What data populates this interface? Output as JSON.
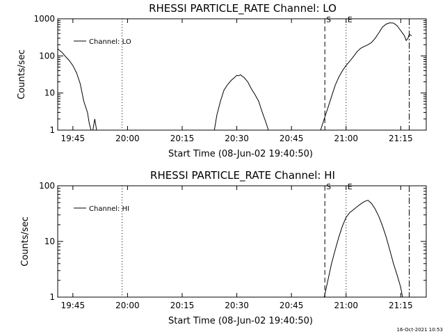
{
  "footer": {
    "timestamp": "16-Oct-2021 10:53"
  },
  "chart_data": [
    {
      "type": "line",
      "title": "RHESSI PARTICLE_RATE Channel: LO",
      "xlabel": "Start Time (08-Jun-02 19:40:50)",
      "ylabel": "Counts/sec",
      "y_scale": "log",
      "ylim": [
        1,
        1000
      ],
      "xlim": [
        "19:40:50",
        "21:22:00"
      ],
      "x_ticks": [
        "19:45",
        "20:00",
        "20:15",
        "20:30",
        "20:45",
        "21:00",
        "21:15"
      ],
      "y_ticks": [
        "1",
        "10",
        "100",
        "1000"
      ],
      "legend": {
        "placement": "top-left",
        "entries": [
          "Channel: LO"
        ]
      },
      "markers": [
        {
          "label": "",
          "time": "19:58:30",
          "style": "dotted"
        },
        {
          "label": "S",
          "time": "20:54:10",
          "style": "dashed"
        },
        {
          "label": "E",
          "time": "21:00:00",
          "style": "dotted"
        },
        {
          "label": "",
          "time": "21:17:20",
          "style": "dash-dot"
        }
      ],
      "series": [
        {
          "name": "Channel: LO",
          "x": [
            "19:40:50",
            "19:42:00",
            "19:43:00",
            "19:44:00",
            "19:45:00",
            "19:46:00",
            "19:47:00",
            "19:48:00",
            "19:49:00",
            "19:49:30",
            "19:50:00",
            "19:50:30",
            "19:51:00",
            "19:51:30",
            "20:23:50",
            "20:24:30",
            "20:25:30",
            "20:26:30",
            "20:27:30",
            "20:28:30",
            "20:29:30",
            "20:30:00",
            "20:30:30",
            "20:31:00",
            "20:32:00",
            "20:33:00",
            "20:34:00",
            "20:35:00",
            "20:36:00",
            "20:37:00",
            "20:38:00",
            "20:38:40",
            "20:53:00",
            "20:54:00",
            "20:55:00",
            "20:56:00",
            "20:57:00",
            "20:58:00",
            "20:59:00",
            "21:00:00",
            "21:01:00",
            "21:02:00",
            "21:03:00",
            "21:04:00",
            "21:05:00",
            "21:06:00",
            "21:07:00",
            "21:08:00",
            "21:09:00",
            "21:10:00",
            "21:11:00",
            "21:12:00",
            "21:13:00",
            "21:14:00",
            "21:15:00",
            "21:16:00",
            "21:16:30",
            "21:17:00",
            "21:17:20",
            "21:18:00"
          ],
          "values": [
            155,
            125,
            95,
            75,
            55,
            35,
            18,
            6,
            3,
            1.5,
            1,
            1,
            2,
            1,
            1,
            2.5,
            6,
            12,
            17,
            22,
            27,
            30,
            29,
            31,
            26,
            20,
            13,
            9,
            6,
            3,
            1.6,
            1,
            1,
            2,
            4,
            8,
            16,
            27,
            40,
            55,
            72,
            95,
            130,
            160,
            180,
            200,
            230,
            300,
            420,
            600,
            720,
            780,
            770,
            650,
            480,
            350,
            260,
            300,
            380,
            350
          ]
        }
      ]
    },
    {
      "type": "line",
      "title": "RHESSI PARTICLE_RATE Channel: HI",
      "xlabel": "Start Time (08-Jun-02 19:40:50)",
      "ylabel": "Counts/sec",
      "y_scale": "log",
      "ylim": [
        1,
        100
      ],
      "xlim": [
        "19:40:50",
        "21:22:00"
      ],
      "x_ticks": [
        "19:45",
        "20:00",
        "20:15",
        "20:30",
        "20:45",
        "21:00",
        "21:15"
      ],
      "y_ticks": [
        "1",
        "10",
        "100"
      ],
      "legend": {
        "placement": "top-left",
        "entries": [
          "Channel: HI"
        ]
      },
      "markers": [
        {
          "label": "",
          "time": "19:58:30",
          "style": "dotted"
        },
        {
          "label": "S",
          "time": "20:54:10",
          "style": "dashed"
        },
        {
          "label": "E",
          "time": "21:00:00",
          "style": "dotted"
        },
        {
          "label": "",
          "time": "21:17:20",
          "style": "dash-dot"
        }
      ],
      "series": [
        {
          "name": "Channel: HI",
          "x": [
            "20:54:00",
            "20:55:00",
            "20:56:00",
            "20:57:00",
            "20:58:00",
            "20:59:00",
            "21:00:00",
            "21:01:00",
            "21:02:00",
            "21:03:00",
            "21:04:00",
            "21:05:00",
            "21:06:00",
            "21:07:00",
            "21:08:00",
            "21:09:00",
            "21:10:00",
            "21:11:00",
            "21:12:00",
            "21:13:00",
            "21:14:00",
            "21:15:00",
            "21:15:30"
          ],
          "values": [
            1,
            2,
            4,
            7,
            12,
            19,
            27,
            33,
            37,
            42,
            47,
            52,
            55,
            48,
            38,
            28,
            19,
            12,
            7,
            4,
            2.5,
            1.5,
            1
          ]
        }
      ]
    }
  ]
}
